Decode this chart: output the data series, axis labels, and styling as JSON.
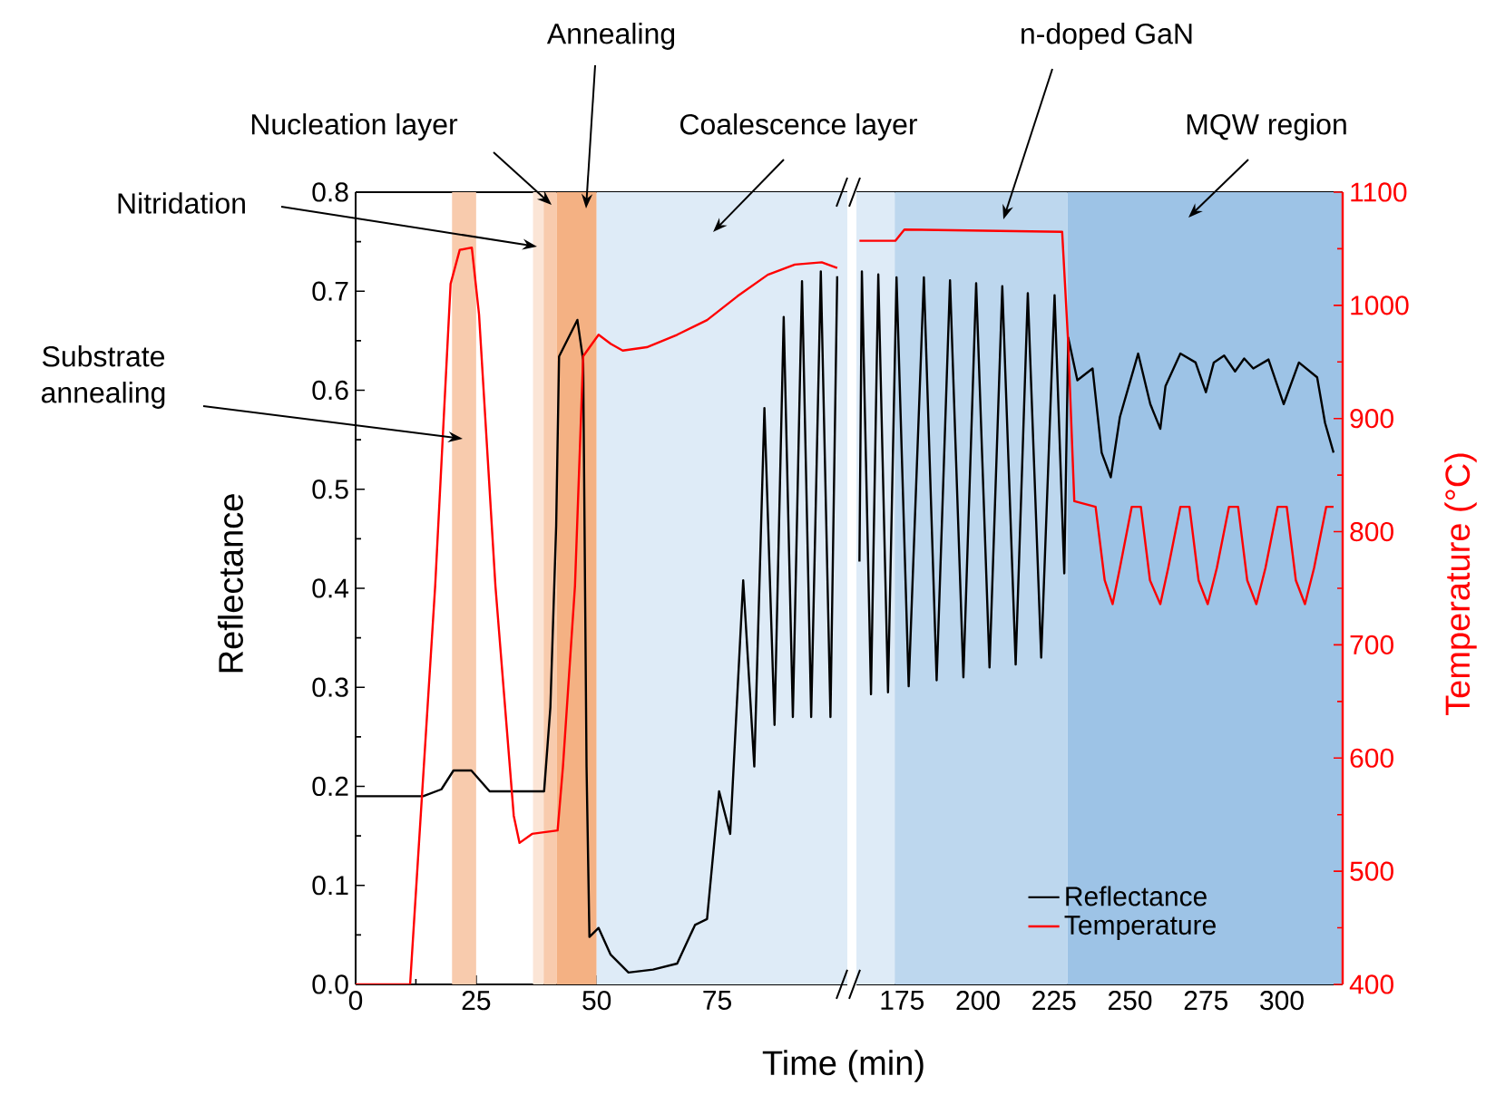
{
  "chart_data": [
    {
      "type": "line",
      "xlabel": "Time (min)",
      "ylabel": "Reflectance",
      "xlim": [
        0,
        102
      ],
      "xticks": [
        0,
        25,
        50,
        75
      ],
      "ylim": [
        0,
        0.8
      ],
      "yticks": [
        {
          "value": 0,
          "label": "0.0"
        },
        0.1,
        0.2,
        0.3,
        0.4,
        0.5,
        0.6,
        0.7,
        0.8
      ],
      "y2lim": [
        400,
        1100
      ],
      "tick_labels": [
        "x",
        "y"
      ],
      "legend": false,
      "series": [
        {
          "color": "#000000",
          "x": [
            0,
            14,
            17.8,
            20.3,
            24,
            27.8,
            39.1,
            40.4,
            41.6,
            42.2,
            46,
            47.2,
            47.9,
            48.5,
            50.4,
            52.9,
            56.6,
            61.7,
            66.7,
            70.4,
            72.9,
            75.4,
            77.7,
            80.4,
            82.7,
            84.8,
            86.9,
            88.8,
            90.7,
            92.6,
            94.5,
            96.5,
            98.5,
            99.9
          ],
          "values": [
            0.19,
            0.19,
            0.197,
            0.216,
            0.216,
            0.195,
            0.195,
            0.28,
            0.463,
            0.634,
            0.671,
            0.63,
            0.22,
            0.048,
            0.057,
            0.03,
            0.012,
            0.015,
            0.021,
            0.06,
            0.066,
            0.195,
            0.152,
            0.408,
            0.22,
            0.582,
            0.262,
            0.674,
            0.27,
            0.71,
            0.27,
            0.72,
            0.27,
            0.715
          ]
        },
        {
          "color": "#ff0000",
          "axis": "y2",
          "x": [
            0,
            11.3,
            16.5,
            19.7,
            21.6,
            24.1,
            25.6,
            29,
            32.8,
            34,
            36.6,
            41.9,
            43,
            45.5,
            47.2,
            50.4,
            52.9,
            55.4,
            60.4,
            66.7,
            72.9,
            79.2,
            85.5,
            91.1,
            96.7,
            99.9
          ],
          "values": [
            400,
            400,
            752,
            1019,
            1049,
            1051,
            992,
            752,
            549,
            525,
            533,
            536,
            592,
            752,
            955,
            974,
            966,
            960,
            963,
            974,
            987,
            1008,
            1027,
            1036,
            1038,
            1033
          ]
        }
      ],
      "bands": [
        {
          "axis": "x",
          "from": 20,
          "to": 25,
          "color": "#f8cbad"
        },
        {
          "axis": "x",
          "from": 36.8,
          "to": 39,
          "color": "#fbe5d6"
        },
        {
          "axis": "x",
          "from": 39,
          "to": 41.7,
          "color": "#f8cbad"
        },
        {
          "axis": "x",
          "from": 41.7,
          "to": 50,
          "color": "#f4b183"
        },
        {
          "axis": "x",
          "from": 50,
          "to": 102,
          "color": "#deebf7"
        }
      ],
      "annotations": [
        "Substrate annealing",
        "Nitridation",
        "Nucleation layer",
        "Annealing",
        "Coalescence layer"
      ]
    },
    {
      "type": "line",
      "y2label": "Temperature (°C)",
      "xlim": [
        160,
        320
      ],
      "xticks": [
        175,
        200,
        225,
        250,
        275,
        300
      ],
      "ylim": [
        0,
        0.8
      ],
      "y2lim": [
        400,
        1100
      ],
      "y2ticks": [
        400,
        500,
        600,
        700,
        800,
        900,
        1000,
        1100
      ],
      "tick_labels": [
        "x",
        "y2"
      ],
      "legend": "bottom",
      "series": [
        {
          "name": "Reflectance",
          "color": "#000000",
          "x": [
            161,
            161.8,
            164.8,
            167.2,
            170.4,
            173.2,
            177.2,
            182.2,
            186.4,
            190.8,
            195.2,
            199.4,
            203.8,
            208,
            212.4,
            216.4,
            220.8,
            225.2,
            228.4,
            229.7,
            232.7,
            237.7,
            240.7,
            243.7,
            246.7,
            252.7,
            256.7,
            260,
            261.7,
            266.6,
            271.6,
            275,
            277.6,
            281,
            284.6,
            287.6,
            290.6,
            295.6,
            300.6,
            305.6,
            311.6,
            314.2,
            317
          ],
          "values": [
            0.427,
            0.72,
            0.293,
            0.717,
            0.295,
            0.714,
            0.301,
            0.714,
            0.307,
            0.711,
            0.31,
            0.708,
            0.32,
            0.705,
            0.323,
            0.698,
            0.33,
            0.696,
            0.415,
            0.653,
            0.61,
            0.622,
            0.537,
            0.512,
            0.573,
            0.637,
            0.586,
            0.561,
            0.604,
            0.637,
            0.628,
            0.598,
            0.628,
            0.635,
            0.619,
            0.632,
            0.622,
            0.631,
            0.586,
            0.628,
            0.613,
            0.567,
            0.537
          ]
        },
        {
          "name": "Temperature",
          "color": "#ff0000",
          "axis": "y2",
          "x": [
            161,
            172.8,
            175.8,
            227.7,
            229.7,
            231.7,
            238.7,
            241.7,
            244.3,
            246.7,
            250.6,
            253.6,
            256.6,
            260,
            262.6,
            266.6,
            269.6,
            272.6,
            275.6,
            278.6,
            282.6,
            285.6,
            288.6,
            291.6,
            294.6,
            298.6,
            301.6,
            304.6,
            307.6,
            310.6,
            314.6,
            317
          ],
          "values": [
            1057,
            1057,
            1067,
            1065,
            966,
            827,
            822,
            757,
            736,
            768,
            822,
            822,
            757,
            736,
            768,
            822,
            822,
            757,
            736,
            768,
            822,
            822,
            757,
            736,
            768,
            822,
            822,
            757,
            736,
            768,
            822,
            822
          ]
        }
      ],
      "bands": [
        {
          "axis": "x",
          "from": 160,
          "to": 172.6,
          "color": "#deebf7"
        },
        {
          "axis": "x",
          "from": 172.6,
          "to": 229.5,
          "color": "#bdd7ee"
        },
        {
          "axis": "x",
          "from": 229.5,
          "to": 320,
          "color": "#9dc3e6"
        }
      ],
      "annotations": [
        "n-doped GaN",
        "MQW region"
      ]
    }
  ]
}
